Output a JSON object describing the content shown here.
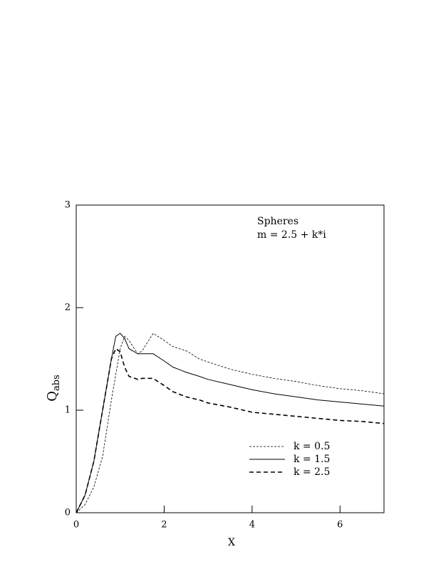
{
  "chart_data": {
    "type": "line",
    "annotations": [
      "Spheres",
      "m = 2.5 + k*i"
    ],
    "xlabel": "X",
    "ylabel": "Q",
    "ylabel_subscript": "abs",
    "x": [
      0,
      0.2,
      0.4,
      0.6,
      0.8,
      0.9,
      1.0,
      1.1,
      1.2,
      1.4,
      1.5,
      1.75,
      2.0,
      2.2,
      2.5,
      2.8,
      3.0,
      3.5,
      4,
      4.5,
      5,
      5.5,
      6,
      6.5,
      7
    ],
    "series": [
      {
        "name": "k = 0.5",
        "color": "#000000",
        "style": "dotted",
        "values": [
          0,
          0.08,
          0.25,
          0.55,
          1.1,
          1.35,
          1.6,
          1.72,
          1.68,
          1.55,
          1.58,
          1.75,
          1.68,
          1.62,
          1.58,
          1.5,
          1.47,
          1.4,
          1.35,
          1.31,
          1.28,
          1.24,
          1.21,
          1.19,
          1.16
        ]
      },
      {
        "name": "k = 1.5",
        "color": "#000000",
        "style": "solid",
        "values": [
          0,
          0.17,
          0.5,
          1.0,
          1.5,
          1.72,
          1.75,
          1.7,
          1.6,
          1.55,
          1.55,
          1.55,
          1.48,
          1.42,
          1.37,
          1.33,
          1.3,
          1.25,
          1.2,
          1.16,
          1.13,
          1.1,
          1.08,
          1.06,
          1.04
        ]
      },
      {
        "name": "k = 2.5",
        "color": "#000000",
        "style": "dashed",
        "values": [
          0,
          0.17,
          0.5,
          1.0,
          1.5,
          1.6,
          1.57,
          1.42,
          1.33,
          1.3,
          1.31,
          1.31,
          1.24,
          1.18,
          1.13,
          1.1,
          1.07,
          1.03,
          0.98,
          0.96,
          0.94,
          0.92,
          0.9,
          0.89,
          0.87
        ]
      }
    ],
    "xlim": [
      0,
      7
    ],
    "xticks": [
      0,
      2,
      4,
      6
    ],
    "ylim": [
      0,
      3
    ],
    "yticks": [
      0,
      1,
      2,
      3
    ],
    "grid": false,
    "legend": "lower right"
  }
}
